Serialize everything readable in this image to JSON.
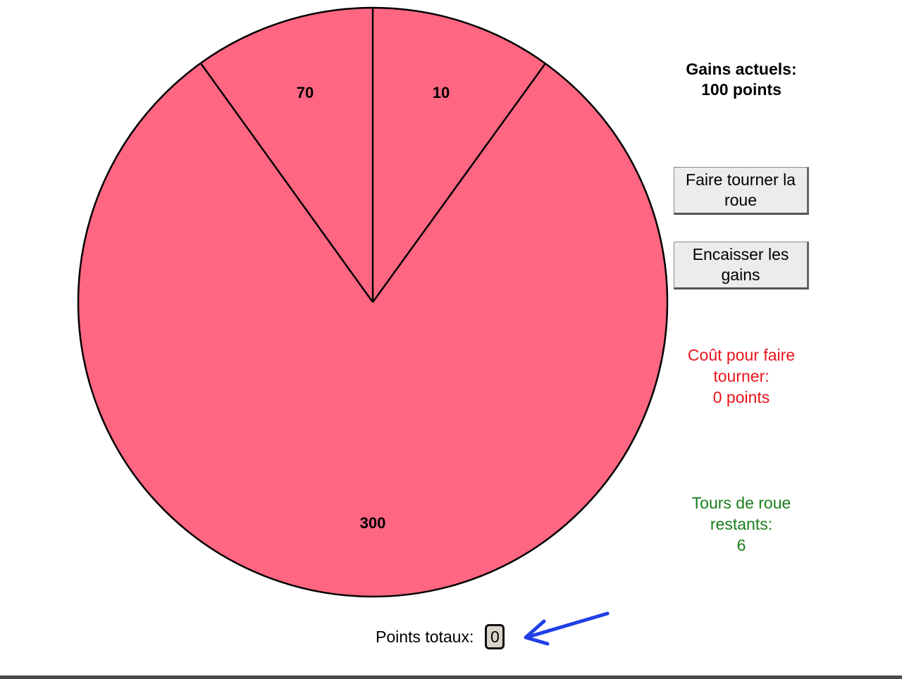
{
  "wheel": {
    "segments": [
      {
        "label": "70"
      },
      {
        "label": "10"
      },
      {
        "label": "300"
      }
    ],
    "color": "#ff6682"
  },
  "current_gains": {
    "label": "Gains actuels:",
    "value": "100 points"
  },
  "buttons": {
    "spin_label": "Faire tourner la roue",
    "cash_label": "Encaisser les gains"
  },
  "cost": {
    "label": "Coût pour faire tourner:",
    "value": "0 points",
    "color": "#e8141c"
  },
  "turns": {
    "label": "Tours de roue restants:",
    "value": "6",
    "color": "#1a7d1a"
  },
  "total": {
    "label": "Points totaux:",
    "value": "0"
  },
  "annotation": {
    "arrow_icon": "arrow-left-icon",
    "arrow_color": "#1f3fe6"
  }
}
